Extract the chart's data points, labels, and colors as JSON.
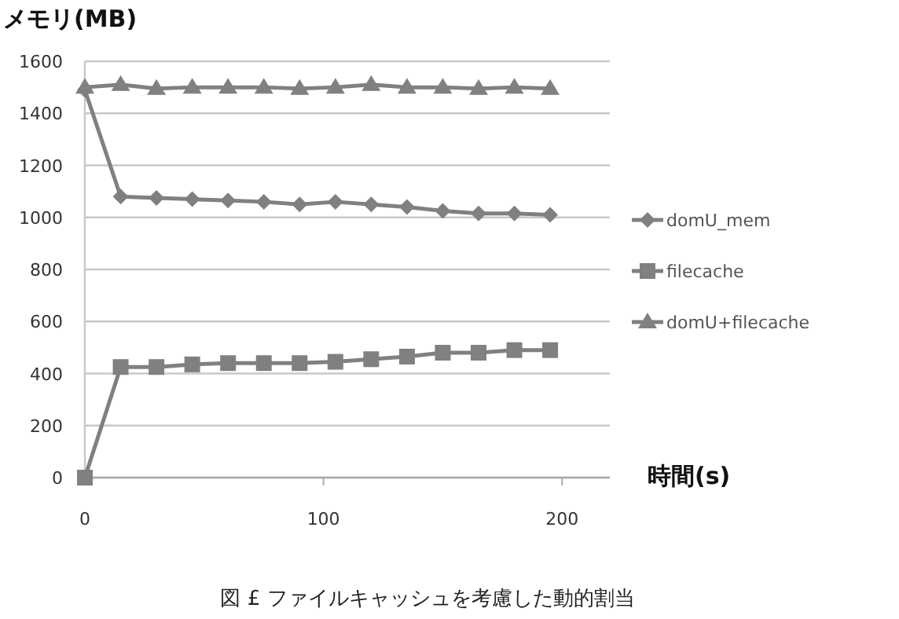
{
  "chart_data": {
    "type": "line",
    "ylabel": "メモリ(MB)",
    "xlabel": "時間(s)",
    "annotations": [
      "図 £ ファイルキャッシュを考慮した動的割当"
    ],
    "x": [
      0,
      15,
      30,
      45,
      60,
      75,
      90,
      105,
      120,
      135,
      150,
      165,
      180,
      195
    ],
    "series": [
      {
        "name": "domU_mem",
        "color": "#808080",
        "marker": "diamond",
        "values": [
          1490,
          1080,
          1075,
          1070,
          1065,
          1060,
          1050,
          1060,
          1050,
          1040,
          1025,
          1015,
          1015,
          1010
        ]
      },
      {
        "name": "filecache",
        "color": "#808080",
        "marker": "square",
        "values": [
          0,
          425,
          425,
          435,
          440,
          440,
          440,
          445,
          455,
          465,
          480,
          480,
          490,
          490
        ]
      },
      {
        "name": "domU+filecache",
        "color": "#808080",
        "marker": "triangle",
        "values": [
          1500,
          1510,
          1495,
          1500,
          1500,
          1500,
          1495,
          1500,
          1510,
          1500,
          1500,
          1495,
          1500,
          1495
        ]
      }
    ],
    "xlim": [
      0,
      220
    ],
    "xticks": [
      0,
      100,
      200
    ],
    "ylim": [
      0,
      1600
    ],
    "yticks": [
      0,
      200,
      400,
      600,
      800,
      1000,
      1200,
      1400,
      1600
    ],
    "grid": "y",
    "legend": "right"
  }
}
